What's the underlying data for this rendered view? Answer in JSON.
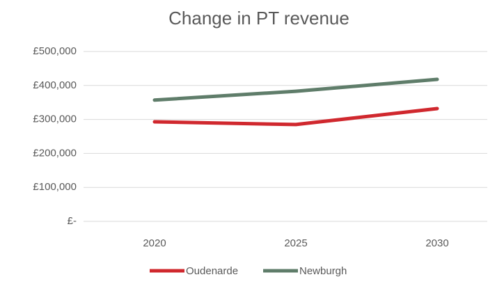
{
  "chart_data": {
    "type": "line",
    "title": "Change in PT revenue",
    "categories": [
      "2020",
      "2025",
      "2030"
    ],
    "series": [
      {
        "name": "Oudenarde",
        "color": "#d0282e",
        "values": [
          293000,
          285000,
          332000
        ]
      },
      {
        "name": "Newburgh",
        "color": "#5f7d6a",
        "values": [
          357000,
          383000,
          418000
        ]
      }
    ],
    "ylim": [
      0,
      500000
    ],
    "yticks": [
      {
        "value": 0,
        "label": "£-"
      },
      {
        "value": 100000,
        "label": "£100,000"
      },
      {
        "value": 200000,
        "label": "£200,000"
      },
      {
        "value": 300000,
        "label": "£300,000"
      },
      {
        "value": 400000,
        "label": "£400,000"
      },
      {
        "value": 500000,
        "label": "£500,000"
      }
    ],
    "grid": true,
    "legend": "bottom"
  }
}
